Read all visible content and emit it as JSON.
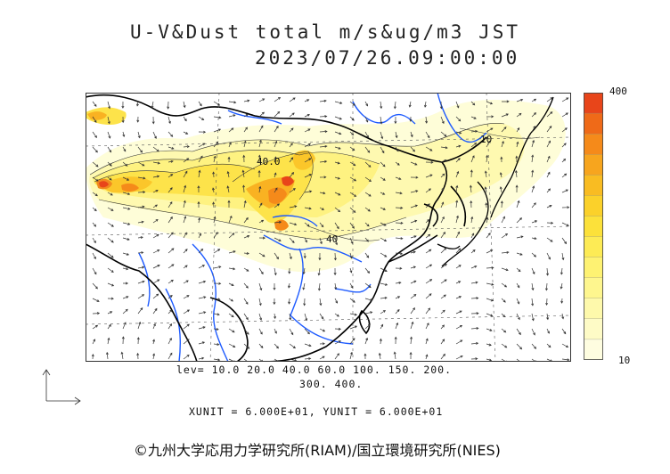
{
  "header": {
    "title_line1": "U-V&Dust total m/s&ug/m3 JST",
    "title_line2": "2023/07/26.09:00:00"
  },
  "legend": {
    "max_label": "400",
    "min_label": "10",
    "colors": [
      "#e8451a",
      "#ef6a18",
      "#f58a1a",
      "#f7a51e",
      "#f9bc22",
      "#fbd12a",
      "#fce13a",
      "#fdeb55",
      "#fef272",
      "#fef68e",
      "#fef9ab",
      "#fefbc6",
      "#fefde0"
    ]
  },
  "contour_levels": {
    "line1": "lev= 10.0 20.0 40.0 60.0 100. 150. 200.",
    "line2": "300. 400."
  },
  "units": {
    "text": "XUNIT = 6.000E+01, YUNIT = 6.000E+01"
  },
  "map_labels": {
    "label_40_north": "40.0",
    "label_40_south": "40",
    "label_10_east": "10"
  },
  "copyright": "©九州大学応用力学研究所(RIAM)/国立環境研究所(NIES)",
  "colors": {
    "coast": "#000000",
    "river": "#1e5bff",
    "wind_arrow": "#333333"
  }
}
